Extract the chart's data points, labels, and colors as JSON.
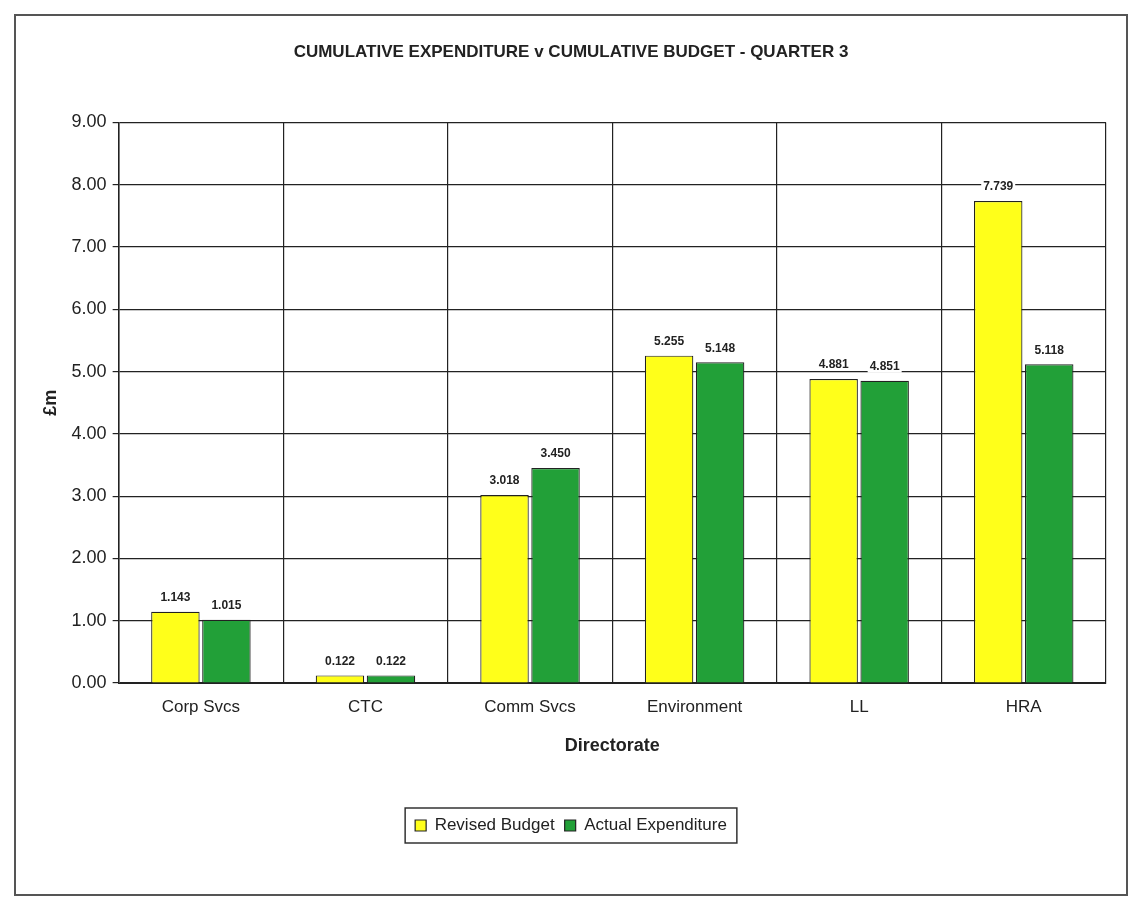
{
  "chart_data": {
    "type": "bar",
    "title": "CUMULATIVE EXPENDITURE v CUMULATIVE BUDGET - QUARTER 3",
    "xlabel": "Directorate",
    "ylabel": "£m",
    "categories": [
      "Corp Svcs",
      "CTC",
      "Comm Svcs",
      "Environment",
      "LL",
      "HRA"
    ],
    "series": [
      {
        "name": "Revised Budget",
        "color": "#ffff1a",
        "values": [
          1.143,
          0.122,
          3.018,
          5.255,
          4.881,
          7.739
        ],
        "value_labels": [
          "1.143",
          "0.122",
          "3.018",
          "5.255",
          "4.881",
          "7.739"
        ]
      },
      {
        "name": "Actual Expenditure",
        "color": "#22a038",
        "values": [
          1.015,
          0.122,
          3.45,
          5.148,
          4.851,
          5.118
        ],
        "value_labels": [
          "1.015",
          "0.122",
          "3.450",
          "5.148",
          "4.851",
          "5.118"
        ]
      }
    ],
    "ylim": [
      0,
      9
    ],
    "yticks": [
      {
        "value": 0,
        "label": "0.00"
      },
      {
        "value": 1,
        "label": "1.00"
      },
      {
        "value": 2,
        "label": "2.00"
      },
      {
        "value": 3,
        "label": "3.00"
      },
      {
        "value": 4,
        "label": "4.00"
      },
      {
        "value": 5,
        "label": "5.00"
      },
      {
        "value": 6,
        "label": "6.00"
      },
      {
        "value": 7,
        "label": "7.00"
      },
      {
        "value": 8,
        "label": "8.00"
      },
      {
        "value": 9,
        "label": "9.00"
      }
    ],
    "grid": true,
    "legend": "bottom"
  }
}
